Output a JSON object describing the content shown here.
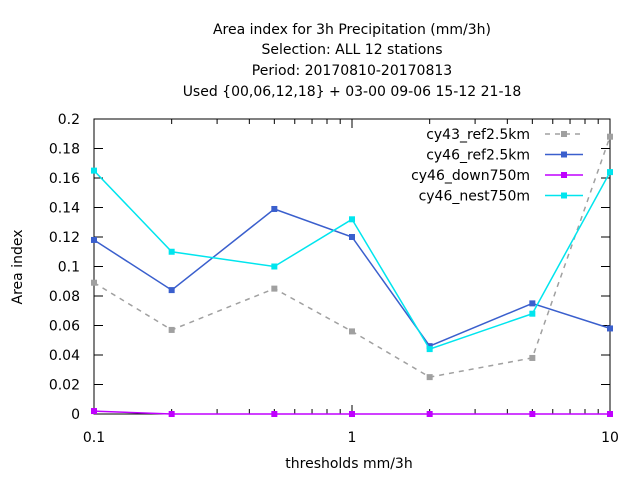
{
  "chart_data": {
    "type": "line",
    "title": "Area index  for 3h Precipitation (mm/3h)",
    "subtitle_lines": [
      "Selection: ALL      12 stations",
      "Period: 20170810-20170813",
      "Used {00,06,12,18} + 03-00 09-06 15-12 21-18"
    ],
    "xlabel": "thresholds mm/3h",
    "ylabel": "Area index",
    "xscale": "log",
    "xlim": [
      0.1,
      10
    ],
    "ylim": [
      0,
      0.2
    ],
    "x_ticks": [
      0.1,
      0.2,
      0.3,
      0.4,
      0.5,
      0.6,
      0.7,
      0.8,
      0.9,
      1,
      2,
      3,
      4,
      5,
      6,
      7,
      8,
      9,
      10
    ],
    "x_tick_labels": [
      "0.1",
      "1",
      "10"
    ],
    "x_tick_label_values": [
      0.1,
      1,
      10
    ],
    "y_ticks": [
      0,
      0.02,
      0.04,
      0.06,
      0.08,
      0.1,
      0.12,
      0.14,
      0.16,
      0.18,
      0.2
    ],
    "y_tick_labels": [
      "0",
      "0.02",
      "0.04",
      "0.06",
      "0.08",
      "0.1",
      "0.12",
      "0.14",
      "0.16",
      "0.18",
      "0.2"
    ],
    "grid": false,
    "legend_position": "top-right",
    "x": [
      0.1,
      0.2,
      0.5,
      1,
      2,
      5,
      10
    ],
    "series": [
      {
        "name": "cy43_ref2.5km",
        "color": "#a0a0a0",
        "dashed": true,
        "values": [
          0.089,
          0.057,
          0.085,
          0.056,
          0.025,
          0.038,
          0.188
        ]
      },
      {
        "name": "cy46_ref2.5km",
        "color": "#3a5fcd",
        "dashed": false,
        "values": [
          0.118,
          0.084,
          0.139,
          0.12,
          0.046,
          0.075,
          0.058
        ]
      },
      {
        "name": "cy46_down750m",
        "color": "#c000ff",
        "dashed": false,
        "values": [
          0.002,
          0,
          0,
          0,
          0,
          0,
          0
        ]
      },
      {
        "name": "cy46_nest750m",
        "color": "#00e5ee",
        "dashed": false,
        "values": [
          0.165,
          0.11,
          0.1,
          0.132,
          0.044,
          0.068,
          0.164
        ]
      }
    ]
  }
}
